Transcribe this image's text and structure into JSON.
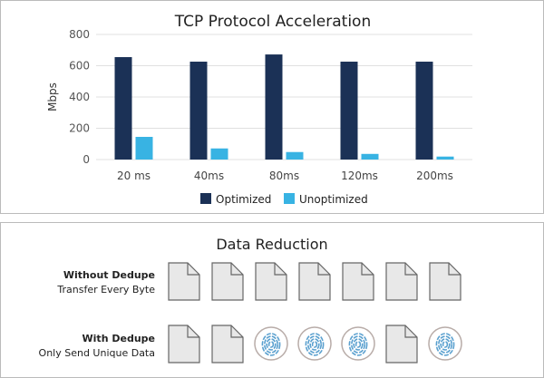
{
  "chart_data": {
    "type": "bar",
    "title": "TCP Protocol Acceleration",
    "xlabel": "",
    "ylabel": "Mbps",
    "ylim": [
      0,
      800
    ],
    "yticks": [
      0,
      200,
      400,
      600,
      800
    ],
    "categories": [
      "20 ms",
      "40ms",
      "80ms",
      "120ms",
      "200ms"
    ],
    "series": [
      {
        "name": "Optimized",
        "color": "#1b3156",
        "values": [
          655,
          626,
          672,
          626,
          626
        ]
      },
      {
        "name": "Unoptimized",
        "color": "#38b3e3",
        "values": [
          145,
          71,
          48,
          36,
          19
        ]
      }
    ],
    "grid": true,
    "legend": "bottom"
  },
  "reduction": {
    "title": "Data Reduction",
    "rows": [
      {
        "title": "Without Dedupe",
        "subtitle": "Transfer Every Byte",
        "items": [
          "file",
          "file",
          "file",
          "file",
          "file",
          "file",
          "file"
        ]
      },
      {
        "title": "With Dedupe",
        "subtitle": "Only Send Unique Data",
        "items": [
          "file",
          "file",
          "fingerprint",
          "fingerprint",
          "fingerprint",
          "file",
          "fingerprint"
        ]
      }
    ]
  }
}
